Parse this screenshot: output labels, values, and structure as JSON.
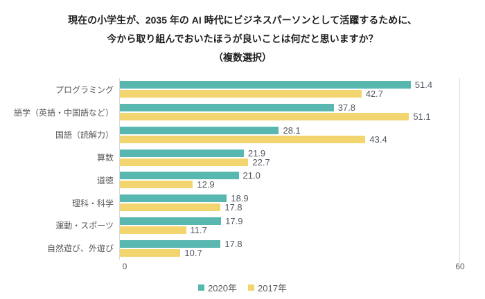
{
  "title": {
    "line1": "現在の小学生が、2035 年の AI 時代にビジネスパーソンとして活躍するために、",
    "line2": "今から取り組んでおいたほうが良いことは何だと思いますか？",
    "line3": "（複数選択）"
  },
  "chart_data": {
    "type": "bar",
    "orientation": "horizontal",
    "title": "現在の小学生が、2035 年の AI 時代にビジネスパーソンとして活躍するために、今から取り組んでおいたほうが良いことは何だと思いますか？（複数選択）",
    "categories": [
      "プログラミング",
      "語学（英語・中国語など）",
      "国語（読解力）",
      "算数",
      "道徳",
      "理科・科学",
      "運動・スポーツ",
      "自然遊び、外遊び"
    ],
    "series": [
      {
        "name": "2020年",
        "color": "#58b8b0",
        "values": [
          51.4,
          37.8,
          28.1,
          21.9,
          21.0,
          18.9,
          17.9,
          17.8
        ]
      },
      {
        "name": "2017年",
        "color": "#f2d56f",
        "values": [
          42.7,
          51.1,
          43.4,
          22.7,
          12.9,
          17.8,
          11.7,
          10.7
        ]
      }
    ],
    "xlim": [
      0,
      60
    ],
    "x_ticks": [
      "0",
      "60"
    ],
    "value_labels": true,
    "legend_position": "bottom",
    "grid": "right-edge-gridline-only",
    "colors": {
      "gridline": "#d9d9d9",
      "axis_text": "#595959",
      "value_text": "#515761",
      "title_text": "#1f1f1f"
    }
  }
}
